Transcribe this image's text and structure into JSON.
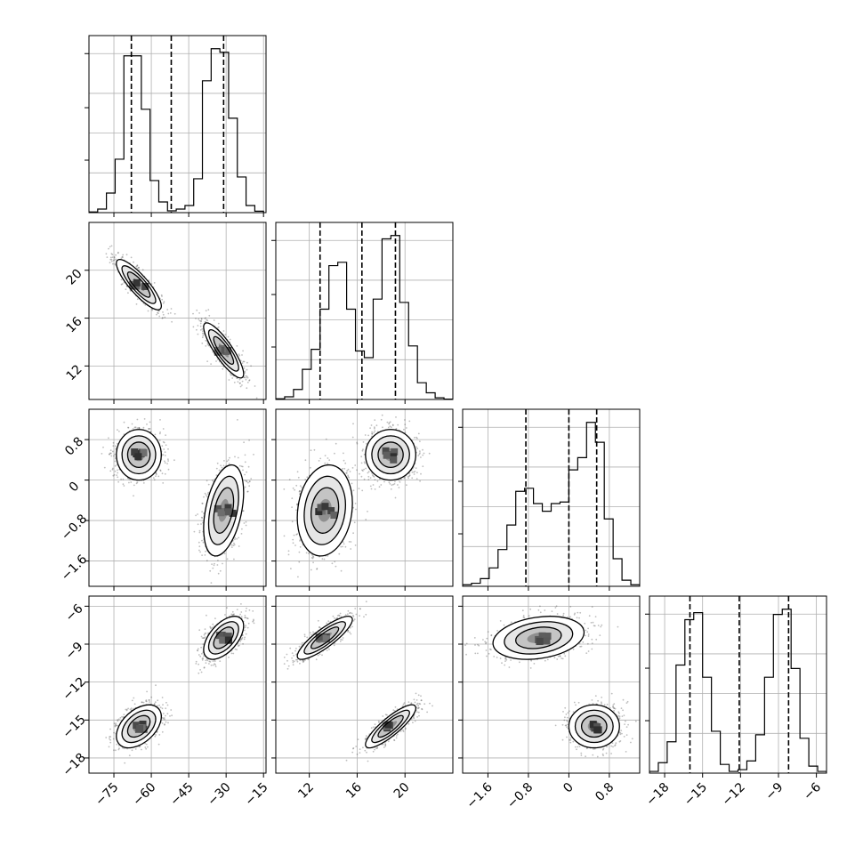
{
  "chart_data": {
    "type": "corner",
    "grid": true,
    "parameters": [
      {
        "id": "p1",
        "range": [
          -85,
          -14
        ],
        "ticks": [
          -75,
          -60,
          -45,
          -30,
          -15
        ]
      },
      {
        "id": "p2",
        "range": [
          9.2,
          24.0
        ],
        "ticks": [
          12,
          16,
          20
        ]
      },
      {
        "id": "p3",
        "range": [
          -2.1,
          1.4
        ],
        "ticks": [
          -1.6,
          -0.8,
          0.0,
          0.8
        ]
      },
      {
        "id": "p4",
        "range": [
          -19.2,
          -5.2
        ],
        "ticks": [
          -18,
          -15,
          -12,
          -9,
          -6
        ]
      }
    ],
    "modes": [
      {
        "weight": 0.5,
        "mean": [
          -65,
          18.8,
          0.5,
          -15.5
        ],
        "sd": [
          4.5,
          1.05,
          0.25,
          0.85
        ]
      },
      {
        "weight": 0.5,
        "mean": [
          -31,
          13.3,
          -0.6,
          -8.5
        ],
        "sd": [
          4.0,
          1.15,
          0.45,
          0.85
        ]
      }
    ],
    "correlations": [
      {
        "pair": [
          0,
          1
        ],
        "mode0": -0.85,
        "mode1": -0.85
      },
      {
        "pair": [
          1,
          3
        ],
        "mode0": 0.85,
        "mode1": 0.85
      },
      {
        "pair": [
          0,
          3
        ],
        "mode0": 0.45,
        "mode1": 0.55
      },
      {
        "pair": [
          0,
          2
        ],
        "mode0": 0.0,
        "mode1": 0.4
      },
      {
        "pair": [
          1,
          2
        ],
        "mode0": 0.0,
        "mode1": 0.15
      },
      {
        "pair": [
          2,
          3
        ],
        "mode0": 0.0,
        "mode1": 0.25
      }
    ],
    "quantile_lines": [
      [
        -68,
        -52,
        -31
      ],
      [
        12.9,
        16.4,
        19.2
      ],
      [
        -0.85,
        0.0,
        0.55
      ],
      [
        -16.0,
        -12.1,
        -8.2
      ]
    ],
    "histograms": [
      {
        "bins": [
          -85,
          -81.5,
          -78,
          -74.5,
          -71,
          -67.5,
          -64,
          -60.5,
          -57,
          -53.5,
          -50,
          -46.5,
          -43,
          -39.5,
          -36,
          -32.5,
          -29,
          -25.5,
          -22,
          -18.5,
          -15
        ],
        "counts": [
          2,
          10,
          55,
          150,
          440,
          440,
          290,
          90,
          30,
          5,
          10,
          20,
          95,
          370,
          460,
          450,
          265,
          100,
          20,
          4
        ]
      },
      {
        "bins": [
          9.2,
          9.94,
          10.68,
          11.42,
          12.16,
          12.9,
          13.64,
          14.38,
          15.12,
          15.86,
          16.6,
          17.34,
          18.08,
          18.82,
          19.56,
          20.3,
          21.04,
          21.78,
          22.52,
          23.26,
          24.0
        ],
        "counts": [
          2,
          8,
          30,
          90,
          150,
          270,
          400,
          410,
          270,
          145,
          125,
          300,
          480,
          490,
          290,
          160,
          50,
          20,
          5,
          1
        ]
      },
      {
        "bins": [
          -2.1,
          -1.925,
          -1.75,
          -1.575,
          -1.4,
          -1.225,
          -1.05,
          -0.875,
          -0.7,
          -0.525,
          -0.35,
          -0.175,
          0.0,
          0.175,
          0.35,
          0.525,
          0.7,
          0.875,
          1.05,
          1.225,
          1.4
        ],
        "counts": [
          5,
          10,
          25,
          60,
          120,
          200,
          310,
          320,
          270,
          245,
          270,
          275,
          380,
          420,
          535,
          470,
          220,
          90,
          20,
          5
        ]
      },
      {
        "bins": [
          -19.2,
          -18.5,
          -17.8,
          -17.1,
          -16.4,
          -15.7,
          -15.0,
          -14.3,
          -13.6,
          -12.9,
          -12.2,
          -11.5,
          -10.8,
          -10.1,
          -9.4,
          -8.7,
          -8.0,
          -7.3,
          -6.6,
          -5.9,
          -5.2
        ],
        "counts": [
          5,
          30,
          90,
          310,
          440,
          460,
          275,
          120,
          25,
          5,
          10,
          35,
          110,
          275,
          455,
          470,
          300,
          100,
          20,
          5
        ]
      }
    ]
  }
}
